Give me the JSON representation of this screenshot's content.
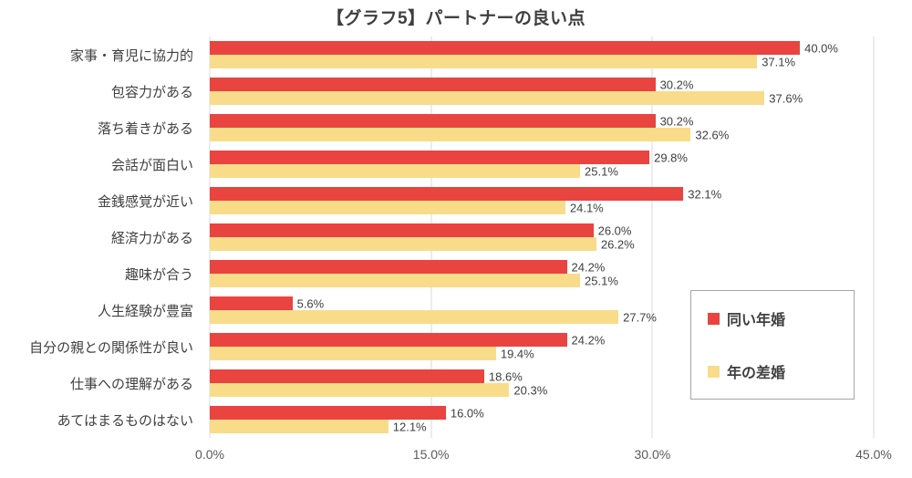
{
  "title": "【グラフ5】パートナーの良い点",
  "chart_data": {
    "type": "bar",
    "orientation": "horizontal",
    "title": "【グラフ5】パートナーの良い点",
    "categories": [
      "家事・育児に協力的",
      "包容力がある",
      "落ち着きがある",
      "会話が面白い",
      "金銭感覚が近い",
      "経済力がある",
      "趣味が合う",
      "人生経験が豊富",
      "自分の親との関係性が良い",
      "仕事への理解がある",
      "あてはまるものはない"
    ],
    "series": [
      {
        "name": "同い年婚",
        "color": "#e9443f",
        "values": [
          40.0,
          30.2,
          30.2,
          29.8,
          32.1,
          26.0,
          24.2,
          5.6,
          24.2,
          18.6,
          16.0
        ]
      },
      {
        "name": "年の差婚",
        "color": "#f9dc8a",
        "values": [
          37.1,
          37.6,
          32.6,
          25.1,
          24.1,
          26.2,
          25.1,
          27.7,
          19.4,
          20.3,
          12.1
        ]
      }
    ],
    "xlim": [
      0,
      45
    ],
    "xticks": [
      "0.0%",
      "15.0%",
      "30.0%",
      "45.0%"
    ],
    "xtick_values": [
      0,
      15,
      30,
      45
    ],
    "value_suffix": "%",
    "grid": true,
    "legend_position": "right-overlay",
    "colors": {
      "grid": "#d9d9d9",
      "title_text": "#3f3f3f",
      "label_text": "#404040",
      "tick_text": "#595959"
    }
  }
}
